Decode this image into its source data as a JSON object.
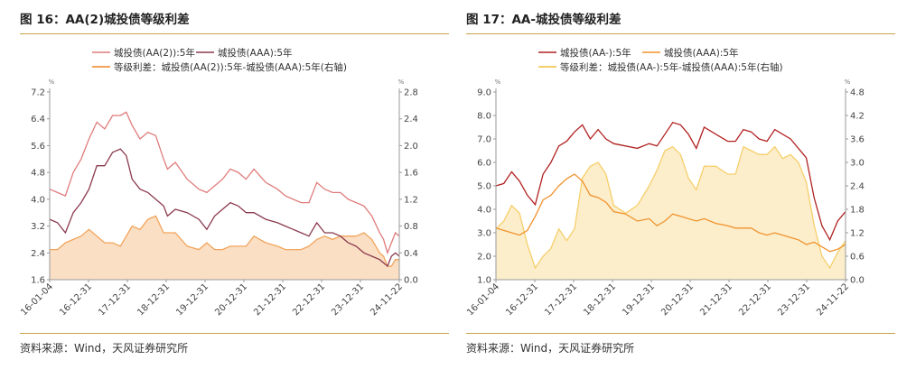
{
  "panels": [
    {
      "title": "图 16：AA(2)城投债等级利差",
      "source": "资料来源：Wind，天风证券研究所"
    },
    {
      "title": "图 17：AA-城投债等级利差",
      "source": "资料来源：Wind，天风证券研究所"
    }
  ],
  "chart_data": [
    {
      "type": "line",
      "title": "图 16：AA(2)城投债等级利差",
      "unit_left": "%",
      "unit_right": "%",
      "x_ticks": [
        "16-01-04",
        "16-12-31",
        "17-12-31",
        "18-12-31",
        "19-12-31",
        "20-12-31",
        "21-12-31",
        "22-12-31",
        "23-12-31",
        "24-11-22"
      ],
      "x_range": [
        2016.0,
        2024.9
      ],
      "ylim_left": [
        1.6,
        7.2
      ],
      "yticks_left": [
        "7.2",
        "6.4",
        "5.6",
        "4.8",
        "4.0",
        "3.2",
        "2.4",
        "1.6"
      ],
      "ylim_right": [
        0.0,
        2.8
      ],
      "yticks_right": [
        "2.8",
        "2.4",
        "2.0",
        "1.6",
        "1.2",
        "0.8",
        "0.4",
        "0.0"
      ],
      "legend_placement": "top",
      "grid": false,
      "series": [
        {
          "name": "城投债(AA(2)):5年",
          "axis": "left",
          "kind": "line",
          "color": "#e07b7b",
          "x": [
            2016.0,
            2016.2,
            2016.4,
            2016.6,
            2016.8,
            2017.0,
            2017.2,
            2017.4,
            2017.6,
            2017.8,
            2017.95,
            2018.1,
            2018.3,
            2018.5,
            2018.7,
            2018.9,
            2019.0,
            2019.2,
            2019.5,
            2019.8,
            2020.0,
            2020.2,
            2020.4,
            2020.6,
            2020.8,
            2021.0,
            2021.2,
            2021.5,
            2021.8,
            2022.0,
            2022.2,
            2022.4,
            2022.6,
            2022.8,
            2023.0,
            2023.2,
            2023.4,
            2023.6,
            2023.8,
            2024.0,
            2024.2,
            2024.4,
            2024.5,
            2024.6,
            2024.7,
            2024.8,
            2024.9
          ],
          "y": [
            4.3,
            4.2,
            4.1,
            4.8,
            5.2,
            5.8,
            6.3,
            6.1,
            6.5,
            6.5,
            6.6,
            6.2,
            5.8,
            6.0,
            5.9,
            5.2,
            4.9,
            5.1,
            4.6,
            4.3,
            4.2,
            4.4,
            4.6,
            4.9,
            4.8,
            4.6,
            4.9,
            4.5,
            4.3,
            4.1,
            4.0,
            3.9,
            3.9,
            4.5,
            4.3,
            4.2,
            4.2,
            4.0,
            3.9,
            3.8,
            3.5,
            3.0,
            2.8,
            2.4,
            2.7,
            3.0,
            2.9
          ]
        },
        {
          "name": "城投债(AAA):5年",
          "axis": "left",
          "kind": "line",
          "color": "#8b3a4e",
          "x": [
            2016.0,
            2016.2,
            2016.4,
            2016.6,
            2016.8,
            2017.0,
            2017.2,
            2017.4,
            2017.6,
            2017.8,
            2017.95,
            2018.1,
            2018.3,
            2018.5,
            2018.7,
            2018.9,
            2019.0,
            2019.2,
            2019.5,
            2019.8,
            2020.0,
            2020.2,
            2020.4,
            2020.6,
            2020.8,
            2021.0,
            2021.2,
            2021.5,
            2021.8,
            2022.0,
            2022.2,
            2022.4,
            2022.6,
            2022.8,
            2023.0,
            2023.2,
            2023.4,
            2023.6,
            2023.8,
            2024.0,
            2024.2,
            2024.4,
            2024.5,
            2024.6,
            2024.7,
            2024.8,
            2024.9
          ],
          "y": [
            3.4,
            3.3,
            3.0,
            3.6,
            3.9,
            4.3,
            5.0,
            5.0,
            5.4,
            5.5,
            5.3,
            4.6,
            4.3,
            4.2,
            4.0,
            3.8,
            3.5,
            3.7,
            3.6,
            3.4,
            3.1,
            3.5,
            3.7,
            3.9,
            3.8,
            3.6,
            3.6,
            3.4,
            3.3,
            3.2,
            3.1,
            3.0,
            2.9,
            3.3,
            3.0,
            3.0,
            2.9,
            2.7,
            2.6,
            2.4,
            2.3,
            2.2,
            2.1,
            2.0,
            2.3,
            2.4,
            2.3
          ]
        },
        {
          "name": "等级利差：城投债(AA(2)):5年-城投债(AAA):5年(右轴)",
          "axis": "right",
          "kind": "area",
          "color": "#f2a45a",
          "x": [
            2016.0,
            2016.2,
            2016.4,
            2016.6,
            2016.8,
            2017.0,
            2017.2,
            2017.4,
            2017.6,
            2017.8,
            2017.95,
            2018.1,
            2018.3,
            2018.5,
            2018.7,
            2018.9,
            2019.0,
            2019.2,
            2019.5,
            2019.8,
            2020.0,
            2020.2,
            2020.4,
            2020.6,
            2020.8,
            2021.0,
            2021.2,
            2021.5,
            2021.8,
            2022.0,
            2022.2,
            2022.4,
            2022.6,
            2022.8,
            2023.0,
            2023.2,
            2023.4,
            2023.6,
            2023.8,
            2024.0,
            2024.2,
            2024.4,
            2024.5,
            2024.6,
            2024.7,
            2024.8,
            2024.9
          ],
          "y": [
            0.45,
            0.45,
            0.55,
            0.6,
            0.65,
            0.75,
            0.65,
            0.55,
            0.55,
            0.5,
            0.65,
            0.8,
            0.75,
            0.9,
            0.95,
            0.7,
            0.7,
            0.7,
            0.5,
            0.45,
            0.55,
            0.45,
            0.45,
            0.5,
            0.5,
            0.5,
            0.65,
            0.55,
            0.5,
            0.45,
            0.45,
            0.45,
            0.5,
            0.6,
            0.65,
            0.6,
            0.65,
            0.65,
            0.65,
            0.7,
            0.6,
            0.4,
            0.35,
            0.2,
            0.2,
            0.3,
            0.3
          ]
        }
      ]
    },
    {
      "type": "line",
      "title": "图 17：AA-城投债等级利差",
      "unit_left": "%",
      "unit_right": "%",
      "x_ticks": [
        "16-01-04",
        "16-12-31",
        "17-12-31",
        "18-12-31",
        "19-12-31",
        "20-12-31",
        "21-12-31",
        "22-12-31",
        "23-12-31",
        "24-11-22"
      ],
      "x_range": [
        2016.0,
        2024.9
      ],
      "ylim_left": [
        1.0,
        9.0
      ],
      "yticks_left": [
        "9.0",
        "8.0",
        "7.0",
        "6.0",
        "5.0",
        "4.0",
        "3.0",
        "2.0",
        "1.0"
      ],
      "ylim_right": [
        0.0,
        4.8
      ],
      "yticks_right": [
        "4.8",
        "4.2",
        "3.6",
        "3.0",
        "2.4",
        "1.8",
        "1.2",
        "0.6",
        "0.0"
      ],
      "legend_placement": "top",
      "grid": false,
      "series": [
        {
          "name": "城投债(AA-):5年",
          "axis": "left",
          "kind": "line",
          "color": "#b22222",
          "x": [
            2016.0,
            2016.2,
            2016.4,
            2016.6,
            2016.8,
            2017.0,
            2017.2,
            2017.4,
            2017.6,
            2017.8,
            2018.0,
            2018.2,
            2018.4,
            2018.6,
            2018.8,
            2019.0,
            2019.3,
            2019.6,
            2019.9,
            2020.1,
            2020.3,
            2020.5,
            2020.7,
            2020.9,
            2021.1,
            2021.3,
            2021.6,
            2021.9,
            2022.1,
            2022.3,
            2022.5,
            2022.7,
            2022.9,
            2023.1,
            2023.3,
            2023.5,
            2023.7,
            2023.9,
            2024.1,
            2024.3,
            2024.5,
            2024.7,
            2024.9
          ],
          "y": [
            5.0,
            5.1,
            5.6,
            5.2,
            4.6,
            4.2,
            5.5,
            6.0,
            6.7,
            6.9,
            7.3,
            7.6,
            7.0,
            7.4,
            7.0,
            6.8,
            6.7,
            6.6,
            6.8,
            6.7,
            7.2,
            7.7,
            7.6,
            7.2,
            6.6,
            7.5,
            7.2,
            6.9,
            6.9,
            7.4,
            7.3,
            7.0,
            6.9,
            7.4,
            7.2,
            7.0,
            6.6,
            6.2,
            4.5,
            3.3,
            2.7,
            3.5,
            3.9
          ]
        },
        {
          "name": "城投债(AAA):5年",
          "axis": "left",
          "kind": "line",
          "color": "#f0922d",
          "x": [
            2016.0,
            2016.2,
            2016.4,
            2016.6,
            2016.8,
            2017.0,
            2017.2,
            2017.4,
            2017.6,
            2017.8,
            2018.0,
            2018.2,
            2018.4,
            2018.6,
            2018.8,
            2019.0,
            2019.3,
            2019.6,
            2019.9,
            2020.1,
            2020.3,
            2020.5,
            2020.7,
            2020.9,
            2021.1,
            2021.3,
            2021.6,
            2021.9,
            2022.1,
            2022.3,
            2022.5,
            2022.7,
            2022.9,
            2023.1,
            2023.3,
            2023.5,
            2023.7,
            2023.9,
            2024.1,
            2024.3,
            2024.5,
            2024.7,
            2024.9
          ],
          "y": [
            3.2,
            3.1,
            3.0,
            2.9,
            3.1,
            3.7,
            4.4,
            4.6,
            5.0,
            5.3,
            5.5,
            5.2,
            4.6,
            4.5,
            4.3,
            3.9,
            3.8,
            3.5,
            3.6,
            3.3,
            3.5,
            3.8,
            3.7,
            3.6,
            3.5,
            3.6,
            3.4,
            3.3,
            3.2,
            3.2,
            3.2,
            3.0,
            2.9,
            3.0,
            2.9,
            2.8,
            2.7,
            2.5,
            2.6,
            2.4,
            2.2,
            2.3,
            2.5
          ]
        },
        {
          "name": "等级利差：城投债(AA-):5年-城投债(AAA):5年(右轴)",
          "axis": "right",
          "kind": "area",
          "color": "#f6cf6b",
          "x": [
            2016.0,
            2016.2,
            2016.4,
            2016.6,
            2016.8,
            2017.0,
            2017.2,
            2017.4,
            2017.6,
            2017.8,
            2018.0,
            2018.2,
            2018.4,
            2018.6,
            2018.8,
            2019.0,
            2019.3,
            2019.6,
            2019.9,
            2020.1,
            2020.3,
            2020.5,
            2020.7,
            2020.9,
            2021.1,
            2021.3,
            2021.6,
            2021.9,
            2022.1,
            2022.3,
            2022.5,
            2022.7,
            2022.9,
            2023.1,
            2023.3,
            2023.5,
            2023.7,
            2023.9,
            2024.1,
            2024.3,
            2024.5,
            2024.7,
            2024.9
          ],
          "y": [
            1.3,
            1.5,
            1.9,
            1.7,
            0.9,
            0.3,
            0.6,
            0.8,
            1.3,
            1.0,
            1.3,
            2.6,
            2.9,
            3.0,
            2.7,
            1.9,
            1.7,
            1.9,
            2.4,
            2.8,
            3.3,
            3.4,
            3.2,
            2.6,
            2.3,
            2.9,
            2.9,
            2.7,
            2.7,
            3.4,
            3.3,
            3.2,
            3.2,
            3.4,
            3.1,
            3.2,
            3.0,
            2.5,
            1.4,
            0.6,
            0.3,
            0.7,
            1.0
          ]
        }
      ]
    }
  ]
}
